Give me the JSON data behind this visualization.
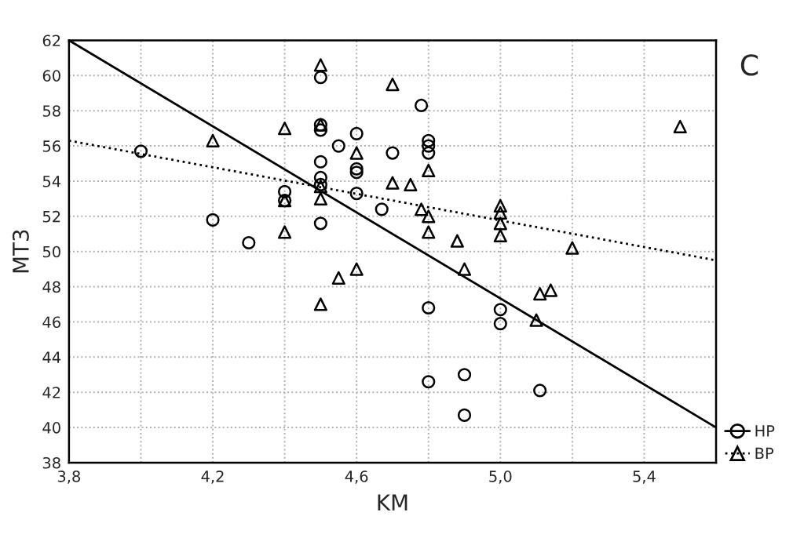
{
  "chart_data": {
    "type": "scatter",
    "xlabel": "KM",
    "ylabel": "MT3",
    "annotations": [
      "C"
    ],
    "xlim": [
      3.8,
      5.6
    ],
    "ylim": [
      38,
      62
    ],
    "xticks": [
      {
        "value": 3.8,
        "label": "3,8"
      },
      {
        "value": 4.0,
        "label": null
      },
      {
        "value": 4.2,
        "label": "4,2"
      },
      {
        "value": 4.4,
        "label": null
      },
      {
        "value": 4.6,
        "label": "4,6"
      },
      {
        "value": 4.8,
        "label": null
      },
      {
        "value": 5.0,
        "label": "5,0"
      },
      {
        "value": 5.2,
        "label": null
      },
      {
        "value": 5.4,
        "label": "5,4"
      }
    ],
    "yticks": [
      38,
      40,
      42,
      44,
      46,
      48,
      50,
      52,
      54,
      56,
      58,
      60,
      62
    ],
    "grid": true,
    "legend": "bottom right",
    "series": [
      {
        "name": "HP",
        "marker": "circle",
        "line_style": "solid",
        "color": "#000000",
        "x": [
          4.5,
          4.78,
          4.5,
          4.5,
          4.6,
          4.0,
          4.55,
          4.7,
          4.5,
          4.6,
          4.6,
          4.5,
          4.5,
          4.6,
          4.4,
          4.4,
          4.67,
          4.2,
          4.5,
          4.3,
          4.8,
          4.8,
          4.8,
          4.8,
          5.0,
          5.0,
          4.8,
          4.9,
          4.9,
          5.11
        ],
        "values": [
          59.9,
          58.3,
          57.2,
          56.9,
          56.7,
          55.7,
          56.0,
          55.6,
          55.1,
          54.7,
          54.5,
          54.2,
          53.8,
          53.3,
          53.4,
          52.9,
          52.4,
          51.8,
          51.6,
          50.5,
          56.3,
          56.0,
          55.6,
          46.8,
          46.7,
          45.9,
          42.6,
          43.0,
          40.7,
          42.1
        ]
      },
      {
        "name": "BP",
        "marker": "triangle",
        "line_style": "dotted",
        "color": "#000000",
        "x": [
          4.5,
          4.7,
          4.4,
          4.5,
          4.2,
          4.6,
          4.7,
          4.75,
          4.5,
          4.4,
          4.5,
          4.78,
          4.4,
          4.8,
          4.8,
          4.8,
          4.88,
          5.0,
          5.0,
          5.0,
          5.0,
          5.2,
          5.5,
          4.5,
          4.55,
          4.6,
          4.9,
          5.11,
          5.14,
          5.1
        ],
        "values": [
          60.6,
          59.5,
          57.0,
          57.2,
          56.3,
          55.6,
          53.9,
          53.8,
          53.7,
          52.9,
          53.0,
          52.4,
          51.1,
          54.6,
          52.0,
          51.1,
          50.6,
          52.6,
          52.2,
          51.6,
          50.9,
          50.2,
          57.1,
          47.0,
          48.5,
          49.0,
          49.0,
          47.6,
          47.8,
          46.1
        ]
      },
      {
        "type": "line",
        "line_style": "solid",
        "color": "#000000",
        "x": [
          3.8,
          5.6
        ],
        "values": [
          62.0,
          40.0
        ]
      },
      {
        "type": "line",
        "line_style": "dotted",
        "color": "#000000",
        "x": [
          3.8,
          5.6
        ],
        "values": [
          56.3,
          49.5
        ]
      }
    ]
  }
}
